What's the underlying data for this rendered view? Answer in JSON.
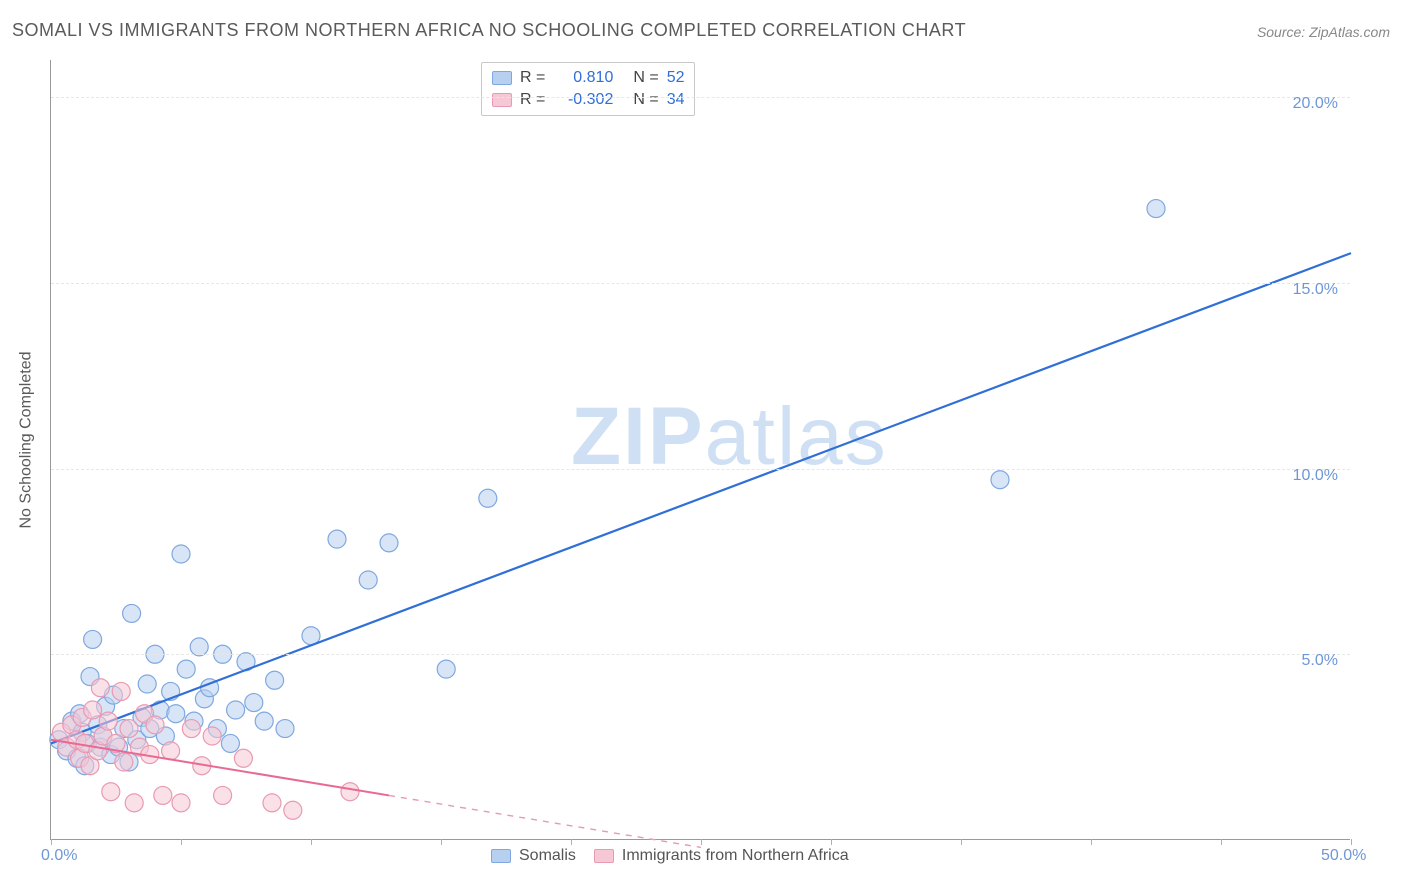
{
  "title": "SOMALI VS IMMIGRANTS FROM NORTHERN AFRICA NO SCHOOLING COMPLETED CORRELATION CHART",
  "source": "Source: ZipAtlas.com",
  "ylabel": "No Schooling Completed",
  "watermark_a": "ZIP",
  "watermark_b": "atlas",
  "chart": {
    "type": "scatter",
    "xlim": [
      0,
      50
    ],
    "ylim": [
      0,
      21
    ],
    "x_ticks": [
      0,
      5,
      10,
      15,
      20,
      25,
      30,
      35,
      40,
      45,
      50
    ],
    "x_tick_labels": {
      "0": "0.0%",
      "50": "50.0%"
    },
    "y_ticks": [
      5,
      10,
      15,
      20
    ],
    "y_tick_labels": {
      "5": "5.0%",
      "10": "10.0%",
      "15": "15.0%",
      "20": "20.0%"
    },
    "background_color": "#ffffff",
    "grid_color": "#e7e7e7",
    "axis_color": "#999999",
    "tick_label_color": "#6d97d8",
    "marker_radius": 9,
    "marker_opacity": 0.55,
    "series": [
      {
        "name": "Somalis",
        "color_fill": "#b8d0f0",
        "color_stroke": "#7fa8e0",
        "line_color": "#2f6fd6",
        "line_width": 2.2,
        "R_label": "R =",
        "R": "0.810",
        "N_label": "N =",
        "N": "52",
        "trend": {
          "x1": 0,
          "y1": 2.6,
          "x2": 50,
          "y2": 15.8,
          "dashed_from_x": 50
        },
        "points": [
          [
            0.3,
            2.7
          ],
          [
            0.6,
            2.4
          ],
          [
            0.8,
            3.2
          ],
          [
            1.0,
            2.2
          ],
          [
            1.1,
            3.4
          ],
          [
            1.2,
            2.9
          ],
          [
            1.3,
            2.0
          ],
          [
            1.4,
            2.6
          ],
          [
            1.6,
            5.4
          ],
          [
            1.8,
            3.1
          ],
          [
            1.9,
            2.5
          ],
          [
            2.0,
            2.8
          ],
          [
            2.1,
            3.6
          ],
          [
            2.3,
            2.3
          ],
          [
            2.4,
            3.9
          ],
          [
            2.6,
            2.5
          ],
          [
            2.8,
            3.0
          ],
          [
            3.0,
            2.1
          ],
          [
            3.1,
            6.1
          ],
          [
            3.3,
            2.7
          ],
          [
            3.5,
            3.3
          ],
          [
            3.7,
            4.2
          ],
          [
            3.8,
            3.0
          ],
          [
            4.0,
            5.0
          ],
          [
            4.2,
            3.5
          ],
          [
            4.4,
            2.8
          ],
          [
            4.6,
            4.0
          ],
          [
            4.8,
            3.4
          ],
          [
            5.0,
            7.7
          ],
          [
            5.2,
            4.6
          ],
          [
            5.5,
            3.2
          ],
          [
            5.7,
            5.2
          ],
          [
            5.9,
            3.8
          ],
          [
            6.1,
            4.1
          ],
          [
            6.4,
            3.0
          ],
          [
            6.6,
            5.0
          ],
          [
            6.9,
            2.6
          ],
          [
            7.1,
            3.5
          ],
          [
            7.5,
            4.8
          ],
          [
            7.8,
            3.7
          ],
          [
            8.2,
            3.2
          ],
          [
            8.6,
            4.3
          ],
          [
            9.0,
            3.0
          ],
          [
            10.0,
            5.5
          ],
          [
            11.0,
            8.1
          ],
          [
            12.2,
            7.0
          ],
          [
            13.0,
            8.0
          ],
          [
            15.2,
            4.6
          ],
          [
            16.8,
            9.2
          ],
          [
            36.5,
            9.7
          ],
          [
            42.5,
            17.0
          ],
          [
            1.5,
            4.4
          ]
        ]
      },
      {
        "name": "Immigrants from Northern Africa",
        "color_fill": "#f6c8d6",
        "color_stroke": "#e89ab3",
        "line_color": "#e86a93",
        "line_width": 2.0,
        "R_label": "R =",
        "R": "-0.302",
        "N_label": "N =",
        "N": "34",
        "trend": {
          "x1": 0,
          "y1": 2.7,
          "x2": 13,
          "y2": 1.2,
          "dashed_to_x": 25,
          "dashed_to_y": -0.2
        },
        "points": [
          [
            0.4,
            2.9
          ],
          [
            0.6,
            2.5
          ],
          [
            0.8,
            3.1
          ],
          [
            1.0,
            2.7
          ],
          [
            1.1,
            2.2
          ],
          [
            1.2,
            3.3
          ],
          [
            1.3,
            2.6
          ],
          [
            1.5,
            2.0
          ],
          [
            1.6,
            3.5
          ],
          [
            1.8,
            2.4
          ],
          [
            1.9,
            4.1
          ],
          [
            2.0,
            2.8
          ],
          [
            2.2,
            3.2
          ],
          [
            2.3,
            1.3
          ],
          [
            2.5,
            2.6
          ],
          [
            2.7,
            4.0
          ],
          [
            2.8,
            2.1
          ],
          [
            3.0,
            3.0
          ],
          [
            3.2,
            1.0
          ],
          [
            3.4,
            2.5
          ],
          [
            3.6,
            3.4
          ],
          [
            3.8,
            2.3
          ],
          [
            4.0,
            3.1
          ],
          [
            4.3,
            1.2
          ],
          [
            4.6,
            2.4
          ],
          [
            5.0,
            1.0
          ],
          [
            5.4,
            3.0
          ],
          [
            5.8,
            2.0
          ],
          [
            6.2,
            2.8
          ],
          [
            6.6,
            1.2
          ],
          [
            7.4,
            2.2
          ],
          [
            8.5,
            1.0
          ],
          [
            9.3,
            0.8
          ],
          [
            11.5,
            1.3
          ]
        ]
      }
    ]
  },
  "legend": {
    "items": [
      {
        "label": "Somalis",
        "fill": "#b8d0f0",
        "stroke": "#7fa8e0"
      },
      {
        "label": "Immigrants from Northern Africa",
        "fill": "#f6c8d6",
        "stroke": "#e89ab3"
      }
    ]
  }
}
